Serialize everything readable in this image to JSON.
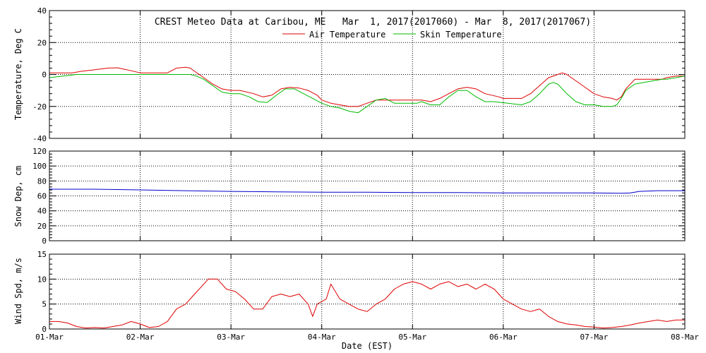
{
  "chart_data": [
    {
      "type": "line",
      "title": "CREST Meteo Data at Caribou, ME   Mar  1, 2017(2017060) - Mar  8, 2017(2017067)",
      "ylabel": "Temperature, Deg C",
      "ylim": [
        -40,
        40
      ],
      "yticks": [
        "40",
        "20",
        "0",
        "-20",
        "-40"
      ],
      "xlim": [
        0,
        7
      ],
      "grid": true,
      "legend": "top-center",
      "series": [
        {
          "name": "Air Temperature",
          "color": "#e00000",
          "points": [
            [
              0,
              1
            ],
            [
              0.25,
              1
            ],
            [
              0.35,
              2
            ],
            [
              0.5,
              3
            ],
            [
              0.65,
              4
            ],
            [
              0.75,
              4.2
            ],
            [
              0.85,
              3
            ],
            [
              1,
              1
            ],
            [
              1.2,
              1
            ],
            [
              1.3,
              1
            ],
            [
              1.4,
              4
            ],
            [
              1.5,
              4.5
            ],
            [
              1.55,
              4
            ],
            [
              1.6,
              2
            ],
            [
              1.7,
              -2
            ],
            [
              1.8,
              -6
            ],
            [
              1.9,
              -9
            ],
            [
              2,
              -10
            ],
            [
              2.1,
              -10
            ],
            [
              2.25,
              -12
            ],
            [
              2.35,
              -14
            ],
            [
              2.45,
              -13
            ],
            [
              2.55,
              -9
            ],
            [
              2.65,
              -8
            ],
            [
              2.75,
              -8.5
            ],
            [
              2.85,
              -10
            ],
            [
              2.95,
              -13
            ],
            [
              3,
              -16
            ],
            [
              3.1,
              -18
            ],
            [
              3.2,
              -19
            ],
            [
              3.3,
              -20
            ],
            [
              3.4,
              -20
            ],
            [
              3.5,
              -18
            ],
            [
              3.6,
              -16
            ],
            [
              3.7,
              -16
            ],
            [
              3.85,
              -16
            ],
            [
              4,
              -16
            ],
            [
              4.1,
              -16
            ],
            [
              4.2,
              -17
            ],
            [
              4.3,
              -15
            ],
            [
              4.4,
              -12
            ],
            [
              4.5,
              -9
            ],
            [
              4.6,
              -8
            ],
            [
              4.7,
              -9
            ],
            [
              4.8,
              -12
            ],
            [
              4.95,
              -14
            ],
            [
              5,
              -15
            ],
            [
              5.1,
              -15
            ],
            [
              5.2,
              -15
            ],
            [
              5.3,
              -12
            ],
            [
              5.4,
              -7
            ],
            [
              5.5,
              -2
            ],
            [
              5.6,
              0
            ],
            [
              5.65,
              1
            ],
            [
              5.7,
              0
            ],
            [
              5.8,
              -4
            ],
            [
              5.9,
              -8
            ],
            [
              6,
              -12
            ],
            [
              6.1,
              -14
            ],
            [
              6.2,
              -15
            ],
            [
              6.25,
              -16
            ],
            [
              6.3,
              -14
            ],
            [
              6.35,
              -9
            ],
            [
              6.45,
              -3
            ],
            [
              6.55,
              -3
            ],
            [
              6.65,
              -3
            ],
            [
              6.75,
              -3
            ],
            [
              6.8,
              -2
            ],
            [
              6.9,
              -1
            ],
            [
              7,
              -1
            ]
          ]
        },
        {
          "name": "Skin Temperature",
          "color": "#00bb00",
          "points": [
            [
              0,
              -2
            ],
            [
              0.15,
              -1
            ],
            [
              0.3,
              0
            ],
            [
              0.5,
              0
            ],
            [
              0.75,
              0
            ],
            [
              1,
              0
            ],
            [
              1.2,
              0
            ],
            [
              1.45,
              0
            ],
            [
              1.55,
              0
            ],
            [
              1.62,
              -1
            ],
            [
              1.7,
              -3
            ],
            [
              1.8,
              -7
            ],
            [
              1.9,
              -11
            ],
            [
              2,
              -12
            ],
            [
              2.1,
              -12
            ],
            [
              2.2,
              -14
            ],
            [
              2.3,
              -17
            ],
            [
              2.4,
              -17.5
            ],
            [
              2.5,
              -13
            ],
            [
              2.6,
              -9
            ],
            [
              2.7,
              -9
            ],
            [
              2.8,
              -12
            ],
            [
              2.9,
              -15
            ],
            [
              3,
              -18
            ],
            [
              3.1,
              -20
            ],
            [
              3.2,
              -21
            ],
            [
              3.3,
              -23
            ],
            [
              3.4,
              -24
            ],
            [
              3.5,
              -20
            ],
            [
              3.6,
              -16
            ],
            [
              3.7,
              -15
            ],
            [
              3.8,
              -18
            ],
            [
              3.9,
              -18
            ],
            [
              4.05,
              -18
            ],
            [
              4.1,
              -17
            ],
            [
              4.2,
              -19
            ],
            [
              4.3,
              -19
            ],
            [
              4.4,
              -14
            ],
            [
              4.5,
              -10
            ],
            [
              4.6,
              -10
            ],
            [
              4.7,
              -14
            ],
            [
              4.8,
              -17
            ],
            [
              4.9,
              -17
            ],
            [
              5.05,
              -18
            ],
            [
              5.2,
              -19
            ],
            [
              5.3,
              -17
            ],
            [
              5.4,
              -12
            ],
            [
              5.5,
              -6
            ],
            [
              5.55,
              -5
            ],
            [
              5.6,
              -6
            ],
            [
              5.7,
              -12
            ],
            [
              5.8,
              -17
            ],
            [
              5.9,
              -19
            ],
            [
              6,
              -19
            ],
            [
              6.1,
              -20
            ],
            [
              6.2,
              -20
            ],
            [
              6.25,
              -19
            ],
            [
              6.3,
              -15
            ],
            [
              6.35,
              -10
            ],
            [
              6.45,
              -6
            ],
            [
              6.55,
              -5
            ],
            [
              6.65,
              -4
            ],
            [
              6.75,
              -3
            ],
            [
              6.8,
              -3
            ],
            [
              6.9,
              -2
            ],
            [
              7,
              -1
            ]
          ]
        }
      ]
    },
    {
      "type": "line",
      "ylabel": "Snow Dep, cm",
      "ylim": [
        0,
        120
      ],
      "yticks": [
        "120",
        "100",
        "80",
        "60",
        "40",
        "20",
        "0"
      ],
      "xlim": [
        0,
        7
      ],
      "grid": true,
      "series": [
        {
          "color": "#0000cc",
          "points": [
            [
              0,
              69
            ],
            [
              0.5,
              69
            ],
            [
              1,
              68
            ],
            [
              1.5,
              67
            ],
            [
              2,
              66
            ],
            [
              2.5,
              65.5
            ],
            [
              3,
              65
            ],
            [
              3.5,
              65
            ],
            [
              4,
              64.5
            ],
            [
              4.5,
              64.5
            ],
            [
              5,
              64
            ],
            [
              5.5,
              64
            ],
            [
              6,
              64
            ],
            [
              6.3,
              63.5
            ],
            [
              6.4,
              64
            ],
            [
              6.5,
              66
            ],
            [
              6.7,
              67
            ],
            [
              7,
              67
            ]
          ]
        }
      ]
    },
    {
      "type": "line",
      "ylabel": "Wind Spd, m/s",
      "xlabel": "Date (EST)",
      "ylim": [
        0,
        15
      ],
      "yticks": [
        "15",
        "10",
        "5",
        "0"
      ],
      "xlim": [
        0,
        7
      ],
      "xticks": [
        "01-Mar",
        "02-Mar",
        "03-Mar",
        "04-Mar",
        "05-Mar",
        "06-Mar",
        "07-Mar",
        "08-Mar"
      ],
      "grid": true,
      "series": [
        {
          "color": "#e00000",
          "points": [
            [
              0,
              1.5
            ],
            [
              0.1,
              1.5
            ],
            [
              0.2,
              1.2
            ],
            [
              0.3,
              0.5
            ],
            [
              0.4,
              0.2
            ],
            [
              0.5,
              0.3
            ],
            [
              0.6,
              0.2
            ],
            [
              0.7,
              0.5
            ],
            [
              0.8,
              0.8
            ],
            [
              0.9,
              1.5
            ],
            [
              1,
              1
            ],
            [
              1.1,
              0.3
            ],
            [
              1.2,
              0.5
            ],
            [
              1.3,
              1.5
            ],
            [
              1.4,
              4
            ],
            [
              1.5,
              5
            ],
            [
              1.6,
              7
            ],
            [
              1.7,
              9
            ],
            [
              1.75,
              10
            ],
            [
              1.85,
              10
            ],
            [
              1.95,
              8
            ],
            [
              2.05,
              7.5
            ],
            [
              2.15,
              6
            ],
            [
              2.25,
              4
            ],
            [
              2.35,
              4
            ],
            [
              2.45,
              6.5
            ],
            [
              2.55,
              7
            ],
            [
              2.65,
              6.5
            ],
            [
              2.75,
              7
            ],
            [
              2.85,
              5
            ],
            [
              2.9,
              2.5
            ],
            [
              2.95,
              5
            ],
            [
              3.05,
              6
            ],
            [
              3.1,
              9
            ],
            [
              3.2,
              6
            ],
            [
              3.3,
              5
            ],
            [
              3.4,
              4
            ],
            [
              3.5,
              3.5
            ],
            [
              3.6,
              5
            ],
            [
              3.7,
              6
            ],
            [
              3.8,
              8
            ],
            [
              3.9,
              9
            ],
            [
              4,
              9.5
            ],
            [
              4.1,
              9
            ],
            [
              4.2,
              8
            ],
            [
              4.3,
              9
            ],
            [
              4.4,
              9.5
            ],
            [
              4.5,
              8.5
            ],
            [
              4.6,
              9
            ],
            [
              4.7,
              8
            ],
            [
              4.8,
              9
            ],
            [
              4.9,
              8
            ],
            [
              5,
              6
            ],
            [
              5.1,
              5
            ],
            [
              5.2,
              4
            ],
            [
              5.3,
              3.5
            ],
            [
              5.4,
              4
            ],
            [
              5.5,
              2.5
            ],
            [
              5.6,
              1.5
            ],
            [
              5.7,
              1
            ],
            [
              5.8,
              0.8
            ],
            [
              5.9,
              0.5
            ],
            [
              6,
              0.4
            ],
            [
              6.1,
              0.2
            ],
            [
              6.2,
              0.3
            ],
            [
              6.3,
              0.5
            ],
            [
              6.4,
              0.8
            ],
            [
              6.5,
              1.2
            ],
            [
              6.6,
              1.5
            ],
            [
              6.7,
              1.8
            ],
            [
              6.8,
              1.5
            ],
            [
              6.9,
              1.8
            ],
            [
              7,
              1.8
            ]
          ]
        }
      ]
    }
  ]
}
